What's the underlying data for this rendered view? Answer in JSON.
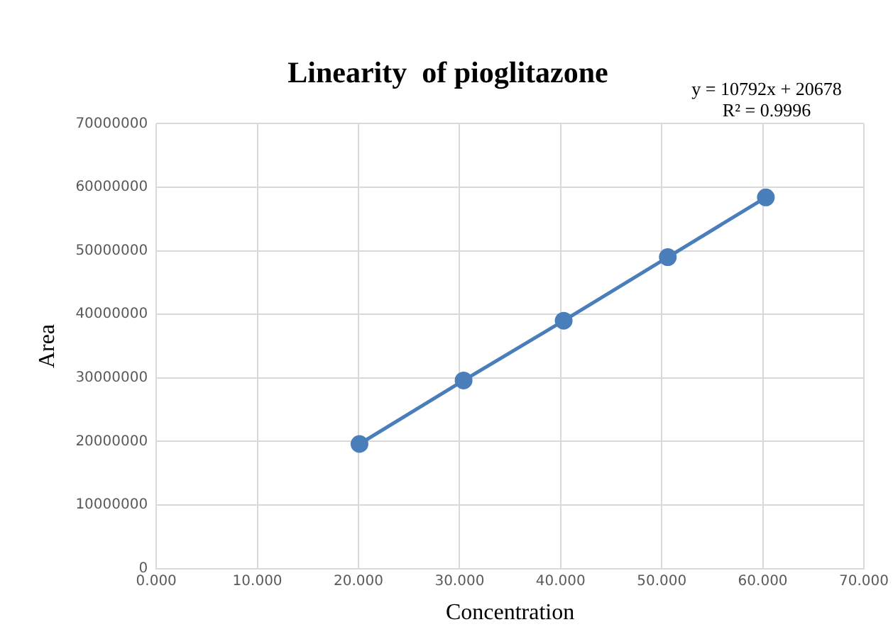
{
  "chart_data": {
    "type": "line",
    "title": "Linearity  of pioglitazone",
    "xlabel": "Concentration",
    "ylabel": "Area",
    "annotations": [
      "y = 10792x + 20678",
      "R² = 0.9996"
    ],
    "series": [
      {
        "color": "#4a7ebb",
        "x": [
          20.1,
          30.4,
          40.3,
          50.6,
          60.3
        ],
        "values": [
          19600000,
          29600000,
          39000000,
          49000000,
          58400000
        ]
      }
    ],
    "xlim": [
      0,
      70
    ],
    "xticks": [
      {
        "value": 0,
        "label": "0.000"
      },
      {
        "value": 10,
        "label": "10.000"
      },
      {
        "value": 20,
        "label": "20.000"
      },
      {
        "value": 30,
        "label": "30.000"
      },
      {
        "value": 40,
        "label": "40.000"
      },
      {
        "value": 50,
        "label": "50.000"
      },
      {
        "value": 60,
        "label": "60.000"
      },
      {
        "value": 70,
        "label": "70.000"
      }
    ],
    "ylim": [
      0,
      70000000
    ],
    "yticks": [
      0,
      10000000,
      20000000,
      30000000,
      40000000,
      50000000,
      60000000,
      70000000
    ],
    "grid": true,
    "legend": false,
    "marker": "circle",
    "line_style": "solid"
  }
}
